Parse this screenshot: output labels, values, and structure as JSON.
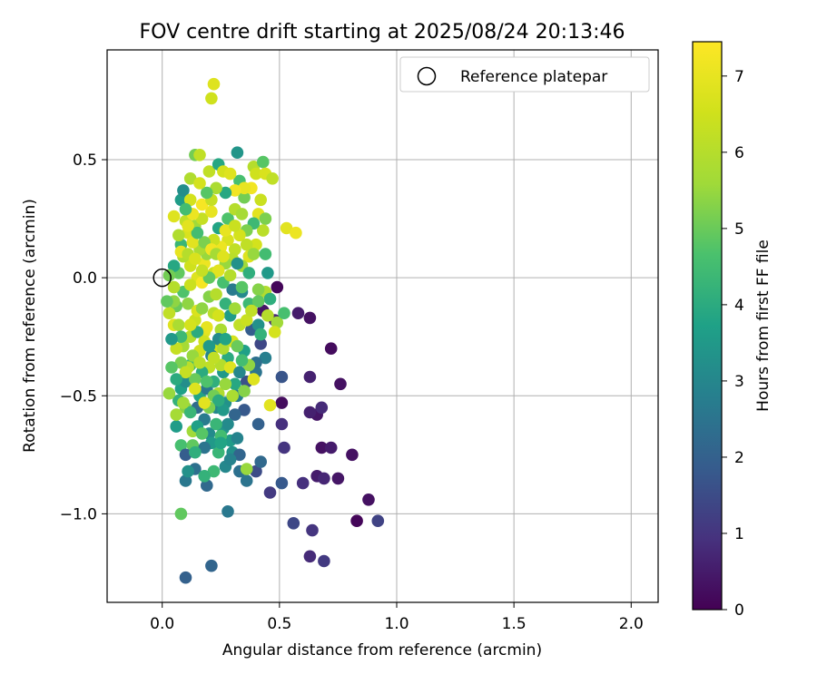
{
  "chart_data": {
    "type": "scatter",
    "title": "FOV centre drift starting at 2025/08/24 20:13:46",
    "xlabel": "Angular distance from reference (arcmin)",
    "ylabel": "Rotation from reference (arcmin)",
    "xlim": [
      -0.235,
      2.115
    ],
    "ylim": [
      -1.375,
      0.965
    ],
    "x_ticks": [
      0.0,
      0.5,
      1.0,
      1.5,
      2.0
    ],
    "x_tick_labels": [
      "0.0",
      "0.5",
      "1.0",
      "1.5",
      "2.0"
    ],
    "y_ticks": [
      0.5,
      0.0,
      -0.5,
      -1.0
    ],
    "y_tick_labels": [
      "0.5",
      "0.0",
      "−0.5",
      "−1.0"
    ],
    "grid": true,
    "legend": {
      "position": "top-right",
      "entries": [
        "Reference platepar"
      ]
    },
    "reference_point": {
      "x": 0.0,
      "y": 0.0
    },
    "colorbar": {
      "label": "Hours from first FF file",
      "colormap": "viridis",
      "range": [
        0,
        7.45
      ],
      "ticks": [
        0,
        1,
        2,
        3,
        4,
        5,
        6,
        7
      ],
      "tick_labels": [
        "0",
        "1",
        "2",
        "3",
        "4",
        "5",
        "6",
        "7"
      ]
    },
    "points": [
      [
        0.49,
        -0.04,
        0.1
      ],
      [
        0.43,
        -0.14,
        0.4
      ],
      [
        0.58,
        -0.15,
        0.5
      ],
      [
        0.63,
        -0.17,
        0.3
      ],
      [
        0.48,
        -0.18,
        0.7
      ],
      [
        0.72,
        -0.3,
        0.2
      ],
      [
        0.76,
        -0.45,
        0.3
      ],
      [
        0.63,
        -0.42,
        0.6
      ],
      [
        0.51,
        -0.53,
        0.2
      ],
      [
        0.66,
        -0.58,
        0.4
      ],
      [
        0.63,
        -0.57,
        0.6
      ],
      [
        0.68,
        -0.55,
        0.8
      ],
      [
        0.51,
        -0.62,
        0.9
      ],
      [
        0.68,
        -0.72,
        0.3
      ],
      [
        0.72,
        -0.72,
        0.5
      ],
      [
        0.52,
        -0.72,
        1.0
      ],
      [
        0.81,
        -0.75,
        0.3
      ],
      [
        0.75,
        -0.85,
        0.4
      ],
      [
        0.66,
        -0.84,
        0.5
      ],
      [
        0.69,
        -0.85,
        0.7
      ],
      [
        0.6,
        -0.87,
        0.9
      ],
      [
        0.46,
        -0.91,
        1.1
      ],
      [
        0.88,
        -0.94,
        0.3
      ],
      [
        0.83,
        -1.03,
        0.1
      ],
      [
        0.92,
        -1.03,
        1.3
      ],
      [
        0.56,
        -1.04,
        1.4
      ],
      [
        0.64,
        -1.07,
        1.0
      ],
      [
        0.63,
        -1.18,
        0.8
      ],
      [
        0.69,
        -1.2,
        1.1
      ],
      [
        0.1,
        -1.27,
        2.0
      ],
      [
        0.21,
        -1.22,
        2.1
      ],
      [
        0.28,
        -0.99,
        2.6
      ],
      [
        0.08,
        -1.0,
        4.9
      ],
      [
        0.51,
        -0.42,
        1.7
      ],
      [
        0.51,
        -0.87,
        1.8
      ],
      [
        0.4,
        -0.82,
        1.5
      ],
      [
        0.42,
        -0.78,
        2.2
      ],
      [
        0.41,
        -0.62,
        2.0
      ],
      [
        0.35,
        -0.56,
        1.8
      ],
      [
        0.36,
        -0.44,
        1.6
      ],
      [
        0.4,
        -0.4,
        2.5
      ],
      [
        0.44,
        -0.34,
        2.8
      ],
      [
        0.42,
        -0.28,
        1.4
      ],
      [
        0.38,
        -0.22,
        1.9
      ],
      [
        0.33,
        -0.82,
        2.4
      ],
      [
        0.36,
        -0.86,
        2.5
      ],
      [
        0.24,
        -0.74,
        4.3
      ],
      [
        0.19,
        -0.88,
        2.2
      ],
      [
        0.1,
        -0.86,
        2.6
      ],
      [
        0.14,
        -0.81,
        2.4
      ],
      [
        0.06,
        -0.63,
        3.6
      ],
      [
        0.08,
        -0.71,
        4.6
      ],
      [
        0.13,
        -0.71,
        4.9
      ],
      [
        0.1,
        -0.75,
        1.9
      ],
      [
        0.15,
        -0.55,
        2.3
      ],
      [
        0.18,
        -0.6,
        2.7
      ],
      [
        0.2,
        -0.66,
        3.1
      ],
      [
        0.23,
        -0.55,
        3.0
      ],
      [
        0.26,
        -0.64,
        3.4
      ],
      [
        0.29,
        -0.69,
        3.6
      ],
      [
        0.32,
        -0.68,
        2.9
      ],
      [
        0.22,
        -0.82,
        4.4
      ],
      [
        0.13,
        -0.65,
        5.6
      ],
      [
        0.1,
        -0.55,
        5.3
      ],
      [
        0.07,
        -0.52,
        4.2
      ],
      [
        0.06,
        -0.58,
        5.7
      ],
      [
        0.08,
        -0.47,
        3.7
      ],
      [
        0.1,
        -0.44,
        3.2
      ],
      [
        0.12,
        -0.37,
        4.5
      ],
      [
        0.16,
        -0.5,
        3.8
      ],
      [
        0.19,
        -0.47,
        2.6
      ],
      [
        0.22,
        -0.44,
        4.1
      ],
      [
        0.26,
        -0.4,
        3.5
      ],
      [
        0.28,
        -0.34,
        4.0
      ],
      [
        0.31,
        -0.45,
        3.9
      ],
      [
        0.32,
        -0.5,
        2.8
      ],
      [
        0.27,
        -0.53,
        3.3
      ],
      [
        0.24,
        -0.49,
        5.9
      ],
      [
        0.2,
        -0.38,
        6.2
      ],
      [
        0.16,
        -0.31,
        6.5
      ],
      [
        0.12,
        -0.25,
        6.0
      ],
      [
        0.09,
        -0.29,
        5.7
      ],
      [
        0.06,
        -0.3,
        6.3
      ],
      [
        0.05,
        -0.2,
        6.8
      ],
      [
        0.06,
        -0.12,
        5.0
      ],
      [
        0.09,
        -0.06,
        4.7
      ],
      [
        0.11,
        -0.11,
        5.4
      ],
      [
        0.14,
        -0.18,
        6.4
      ],
      [
        0.18,
        -0.23,
        6.9
      ],
      [
        0.22,
        -0.15,
        6.1
      ],
      [
        0.25,
        -0.22,
        5.8
      ],
      [
        0.3,
        -0.27,
        6.6
      ],
      [
        0.33,
        -0.2,
        6.2
      ],
      [
        0.35,
        -0.31,
        3.7
      ],
      [
        0.37,
        -0.11,
        4.4
      ],
      [
        0.34,
        -0.06,
        3.1
      ],
      [
        0.3,
        -0.05,
        2.7
      ],
      [
        0.26,
        -0.02,
        4.6
      ],
      [
        0.22,
        0.02,
        6.4
      ],
      [
        0.18,
        0.06,
        7.1
      ],
      [
        0.15,
        0.0,
        6.8
      ],
      [
        0.12,
        0.05,
        6.5
      ],
      [
        0.09,
        0.09,
        5.9
      ],
      [
        0.07,
        0.02,
        4.9
      ],
      [
        0.05,
        0.05,
        3.9
      ],
      [
        0.08,
        0.14,
        4.3
      ],
      [
        0.11,
        0.19,
        6.7
      ],
      [
        0.14,
        0.22,
        5.6
      ],
      [
        0.17,
        0.25,
        6.3
      ],
      [
        0.21,
        0.28,
        7.0
      ],
      [
        0.24,
        0.21,
        3.8
      ],
      [
        0.28,
        0.25,
        4.7
      ],
      [
        0.31,
        0.29,
        6.0
      ],
      [
        0.35,
        0.34,
        5.1
      ],
      [
        0.38,
        0.38,
        7.2
      ],
      [
        0.41,
        0.27,
        6.9
      ],
      [
        0.44,
        0.25,
        5.2
      ],
      [
        0.43,
        0.2,
        6.1
      ],
      [
        0.4,
        0.14,
        6.6
      ],
      [
        0.37,
        0.09,
        6.8
      ],
      [
        0.34,
        0.05,
        5.6
      ],
      [
        0.31,
        0.12,
        6.2
      ],
      [
        0.28,
        0.16,
        6.7
      ],
      [
        0.25,
        0.13,
        7.1
      ],
      [
        0.22,
        0.16,
        6.4
      ],
      [
        0.19,
        0.1,
        5.5
      ],
      [
        0.16,
        0.12,
        5.8
      ],
      [
        0.13,
        0.15,
        6.9
      ],
      [
        0.1,
        0.24,
        6.2
      ],
      [
        0.08,
        0.33,
        3.6
      ],
      [
        0.09,
        0.37,
        3.2
      ],
      [
        0.12,
        0.42,
        5.9
      ],
      [
        0.14,
        0.52,
        5.1
      ],
      [
        0.16,
        0.52,
        6.2
      ],
      [
        0.2,
        0.45,
        6.2
      ],
      [
        0.24,
        0.48,
        3.9
      ],
      [
        0.26,
        0.45,
        6.6
      ],
      [
        0.32,
        0.53,
        3.4
      ],
      [
        0.33,
        0.41,
        4.6
      ],
      [
        0.39,
        0.47,
        6.0
      ],
      [
        0.4,
        0.44,
        6.5
      ],
      [
        0.43,
        0.49,
        4.8
      ],
      [
        0.44,
        0.44,
        6.7
      ],
      [
        0.47,
        0.42,
        6.2
      ],
      [
        0.22,
        0.82,
        6.8
      ],
      [
        0.21,
        0.76,
        6.5
      ],
      [
        0.29,
        0.44,
        6.8
      ],
      [
        0.35,
        0.38,
        7.0
      ],
      [
        0.31,
        0.37,
        7.2
      ],
      [
        0.17,
        0.31,
        7.3
      ],
      [
        0.21,
        0.33,
        6.3
      ],
      [
        0.05,
        0.26,
        6.8
      ],
      [
        0.53,
        0.21,
        6.9
      ],
      [
        0.57,
        0.19,
        7.1
      ],
      [
        0.49,
        -0.19,
        5.6
      ],
      [
        0.52,
        -0.15,
        4.6
      ],
      [
        0.48,
        -0.23,
        6.6
      ],
      [
        0.46,
        -0.54,
        6.9
      ],
      [
        0.36,
        -0.81,
        5.5
      ],
      [
        0.39,
        -0.43,
        6.8
      ],
      [
        0.3,
        -0.5,
        5.8
      ],
      [
        0.25,
        -0.37,
        6.0
      ],
      [
        0.22,
        -0.3,
        6.5
      ],
      [
        0.19,
        -0.21,
        7.0
      ],
      [
        0.15,
        -0.14,
        6.7
      ],
      [
        0.12,
        -0.03,
        6.4
      ],
      [
        0.17,
        -0.02,
        7.3
      ],
      [
        0.2,
        -0.08,
        5.3
      ],
      [
        0.23,
        -0.07,
        6.0
      ],
      [
        0.27,
        -0.11,
        4.2
      ],
      [
        0.29,
        -0.16,
        3.6
      ],
      [
        0.24,
        -0.26,
        3.1
      ],
      [
        0.21,
        -0.33,
        2.9
      ],
      [
        0.17,
        -0.4,
        4.0
      ],
      [
        0.14,
        -0.43,
        5.0
      ],
      [
        0.11,
        -0.38,
        6.1
      ],
      [
        0.08,
        -0.36,
        5.2
      ],
      [
        0.04,
        -0.38,
        4.8
      ],
      [
        0.03,
        -0.49,
        5.5
      ],
      [
        0.05,
        -0.1,
        5.4
      ],
      [
        0.03,
        -0.15,
        6.2
      ],
      [
        0.07,
        -0.2,
        5.8
      ],
      [
        0.44,
        -0.06,
        5.9
      ],
      [
        0.41,
        -0.05,
        5.3
      ],
      [
        0.46,
        -0.09,
        4.1
      ],
      [
        0.45,
        0.02,
        3.5
      ],
      [
        0.37,
        0.02,
        4.1
      ],
      [
        0.34,
        -0.04,
        4.8
      ],
      [
        0.39,
        0.23,
        4.4
      ],
      [
        0.36,
        0.2,
        5.2
      ],
      [
        0.33,
        0.18,
        6.6
      ],
      [
        0.3,
        0.08,
        6.1
      ],
      [
        0.27,
        0.06,
        5.5
      ],
      [
        0.24,
        0.03,
        6.9
      ],
      [
        0.2,
        0.0,
        4.9
      ],
      [
        0.18,
        0.15,
        5.2
      ],
      [
        0.15,
        0.19,
        4.5
      ],
      [
        0.13,
        0.27,
        7.1
      ],
      [
        0.12,
        0.33,
        6.6
      ],
      [
        0.1,
        0.29,
        4.5
      ],
      [
        0.07,
        0.18,
        5.9
      ],
      [
        0.08,
        0.11,
        7.0
      ],
      [
        0.11,
        0.1,
        6.0
      ],
      [
        0.14,
        0.08,
        6.7
      ],
      [
        0.17,
        0.03,
        6.3
      ],
      [
        0.21,
        0.12,
        7.2
      ],
      [
        0.23,
        0.1,
        5.7
      ],
      [
        0.26,
        0.09,
        6.8
      ],
      [
        0.29,
        0.01,
        6.0
      ],
      [
        0.32,
        0.06,
        3.3
      ],
      [
        0.36,
        0.14,
        6.2
      ],
      [
        0.39,
        0.1,
        5.5
      ],
      [
        0.15,
        -0.23,
        4.0
      ],
      [
        0.18,
        -0.27,
        6.5
      ],
      [
        0.22,
        -0.34,
        6.2
      ],
      [
        0.26,
        -0.3,
        5.9
      ],
      [
        0.29,
        -0.38,
        6.8
      ],
      [
        0.33,
        -0.4,
        3.0
      ],
      [
        0.35,
        -0.48,
        5.3
      ],
      [
        0.31,
        -0.58,
        2.1
      ],
      [
        0.28,
        -0.62,
        3.1
      ],
      [
        0.25,
        -0.67,
        4.5
      ],
      [
        0.21,
        -0.7,
        3.5
      ],
      [
        0.18,
        -0.72,
        2.5
      ],
      [
        0.15,
        -0.63,
        3.7
      ],
      [
        0.12,
        -0.57,
        4.3
      ],
      [
        0.09,
        -0.53,
        5.6
      ],
      [
        0.1,
        -0.4,
        6.3
      ],
      [
        0.13,
        -0.33,
        5.5
      ],
      [
        0.16,
        -0.36,
        6.1
      ],
      [
        0.19,
        -0.44,
        4.7
      ],
      [
        0.22,
        -0.5,
        5.1
      ],
      [
        0.26,
        -0.56,
        3.5
      ],
      [
        0.3,
        -0.74,
        3.3
      ],
      [
        0.33,
        -0.75,
        2.1
      ],
      [
        0.27,
        -0.8,
        3.0
      ],
      [
        0.23,
        -0.62,
        4.3
      ],
      [
        0.08,
        -0.25,
        4.4
      ],
      [
        0.06,
        -0.43,
        4.0
      ],
      [
        0.04,
        -0.26,
        3.5
      ],
      [
        0.02,
        -0.1,
        4.9
      ],
      [
        0.03,
        0.01,
        5.1
      ],
      [
        0.05,
        -0.04,
        6.0
      ],
      [
        0.12,
        -0.2,
        6.6
      ],
      [
        0.17,
        -0.13,
        5.4
      ],
      [
        0.24,
        -0.16,
        6.6
      ],
      [
        0.31,
        -0.13,
        5.6
      ],
      [
        0.36,
        -0.18,
        6.4
      ],
      [
        0.41,
        -0.2,
        3.3
      ],
      [
        0.45,
        -0.16,
        6.0
      ],
      [
        0.4,
        -0.36,
        2.4
      ],
      [
        0.37,
        -0.37,
        5.4
      ],
      [
        0.34,
        -0.35,
        4.5
      ],
      [
        0.27,
        -0.45,
        5.5
      ],
      [
        0.24,
        -0.52,
        4.0
      ],
      [
        0.2,
        -0.55,
        5.2
      ],
      [
        0.17,
        -0.66,
        4.8
      ],
      [
        0.14,
        -0.74,
        4.1
      ],
      [
        0.11,
        -0.82,
        3.3
      ],
      [
        0.18,
        -0.84,
        4.2
      ],
      [
        0.25,
        -0.7,
        3.8
      ],
      [
        0.29,
        -0.77,
        2.9
      ],
      [
        0.32,
        -0.29,
        5.0
      ],
      [
        0.42,
        -0.24,
        4.2
      ],
      [
        0.27,
        0.36,
        3.9
      ],
      [
        0.23,
        0.38,
        5.8
      ],
      [
        0.19,
        0.36,
        4.8
      ],
      [
        0.16,
        0.4,
        6.6
      ],
      [
        0.11,
        0.22,
        6.9
      ],
      [
        0.27,
        0.2,
        7.0
      ],
      [
        0.31,
        0.22,
        6.4
      ],
      [
        0.34,
        0.27,
        5.7
      ],
      [
        0.42,
        0.33,
        6.4
      ],
      [
        0.44,
        0.1,
        4.5
      ],
      [
        0.41,
        -0.1,
        4.9
      ],
      [
        0.38,
        -0.14,
        6.2
      ],
      [
        0.2,
        -0.29,
        3.5
      ],
      [
        0.14,
        -0.47,
        6.8
      ],
      [
        0.18,
        -0.53,
        6.9
      ],
      [
        0.27,
        -0.26,
        3.8
      ]
    ]
  }
}
